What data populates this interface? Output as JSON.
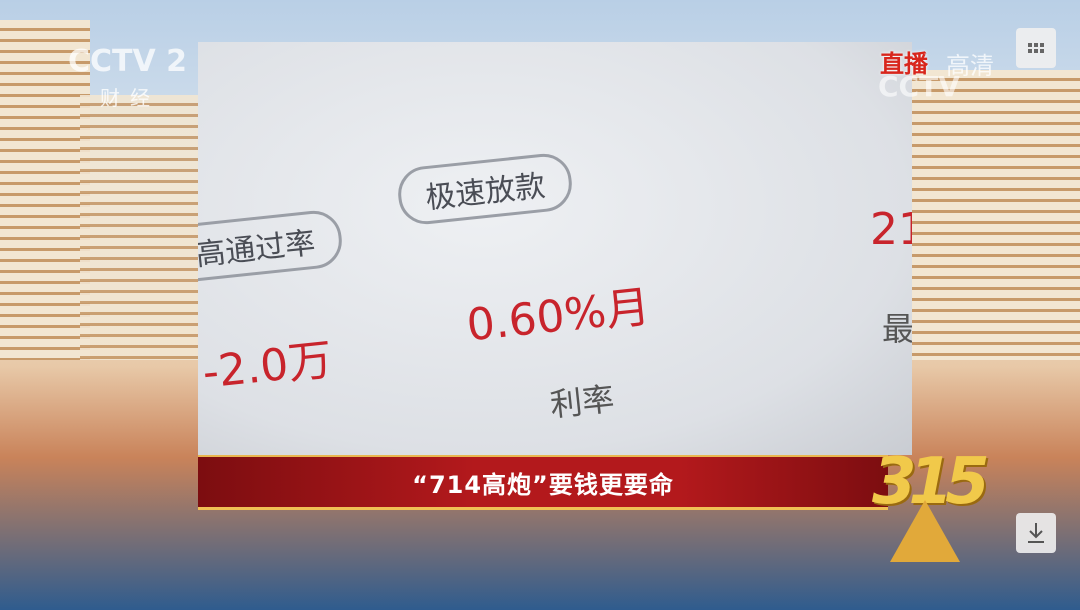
{
  "broadcast": {
    "channel_logo": "CCTV 2",
    "channel_name": "财经",
    "live": "直播",
    "hd": "高清",
    "hd_logo": "CCTV"
  },
  "photo": {
    "tags": [
      "高通过率",
      "极速放款"
    ],
    "amount": "-2.0万",
    "rate": "0.60%月",
    "rate_label": "利率",
    "partial_value": "21",
    "partial_label": "最"
  },
  "caption": "“714高炮”要钱更要命",
  "event_logo": "315"
}
